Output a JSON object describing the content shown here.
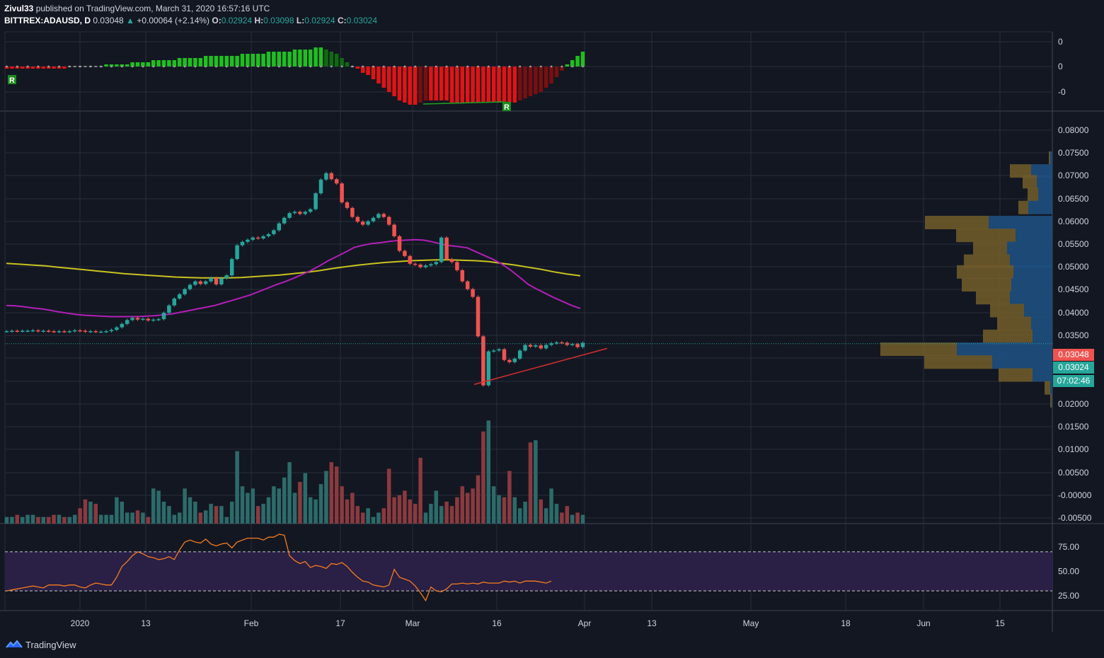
{
  "header": {
    "publisher": "Zivul33",
    "published_text": "published on TradingView.com, March 31, 2020 16:57:16 UTC",
    "symbol": "BITTREX:ADAUSD, D",
    "last": "0.03048",
    "change": "+0.00064 (+2.14%)",
    "o_label": "O:",
    "o": "0.02924",
    "h_label": "H:",
    "h": "0.03098",
    "l_label": "L:",
    "l": "0.02924",
    "c_label": "C:",
    "c": "0.03024"
  },
  "tags": {
    "price": "0.03048",
    "close": "0.03024",
    "countdown": "07:02:46"
  },
  "footer": {
    "brand": "TradingView"
  },
  "colors": {
    "bg": "#131722",
    "grid": "#2a2e39",
    "up": "#26a69a",
    "down": "#ef5350",
    "ma_fast": "#b31fb8",
    "ma_slow": "#c9c31e",
    "rsi": "#f57c1f",
    "rsi_band": "#2a1f45",
    "vp_up": "#1e4f7e",
    "vp_down": "#6e5a2a"
  },
  "chart_data": [
    {
      "type": "candlestick",
      "symbol": "BITTREX:ADAUSD",
      "interval": "D",
      "x_ticks": [
        "2020",
        "13",
        "Feb",
        "17",
        "Mar",
        "16",
        "Apr",
        "13",
        "May",
        "18",
        "Jun",
        "15"
      ],
      "y_ticks": [
        "0.08000",
        "0.07500",
        "0.07000",
        "0.06500",
        "0.06000",
        "0.05500",
        "0.05000",
        "0.04500",
        "0.04000",
        "0.03500",
        "0.03000",
        "0.02500",
        "0.02000",
        "0.01500",
        "0.01000",
        "0.00500",
        "-0.00000",
        "-0.00500"
      ],
      "close": [
        0.0332,
        0.0333,
        0.0332,
        0.0333,
        0.0333,
        0.0334,
        0.0332,
        0.0333,
        0.0332,
        0.0331,
        0.0332,
        0.0331,
        0.0332,
        0.0334,
        0.0333,
        0.0331,
        0.0332,
        0.0331,
        0.0331,
        0.0332,
        0.0335,
        0.0341,
        0.0349,
        0.0358,
        0.0363,
        0.0359,
        0.0361,
        0.0357,
        0.0359,
        0.036,
        0.0375,
        0.0392,
        0.0408,
        0.0418,
        0.043,
        0.044,
        0.0448,
        0.0442,
        0.0448,
        0.0456,
        0.0441,
        0.0455,
        0.0462,
        0.05,
        0.0532,
        0.054,
        0.0545,
        0.055,
        0.0548,
        0.0553,
        0.0558,
        0.0567,
        0.0583,
        0.0596,
        0.0607,
        0.061,
        0.0605,
        0.061,
        0.0616,
        0.0653,
        0.0685,
        0.07,
        0.0686,
        0.0676,
        0.0632,
        0.0619,
        0.0598,
        0.0587,
        0.058,
        0.0588,
        0.0596,
        0.0605,
        0.0598,
        0.058,
        0.0553,
        0.0519,
        0.0507,
        0.0489,
        0.0487,
        0.0481,
        0.0485,
        0.0488,
        0.0493,
        0.055,
        0.05,
        0.0493,
        0.0474,
        0.0448,
        0.043,
        0.0412,
        0.032,
        0.0206,
        0.0285,
        0.0287,
        0.029,
        0.0265,
        0.026,
        0.0268,
        0.0287,
        0.03,
        0.0296,
        0.0299,
        0.0292,
        0.03,
        0.0304,
        0.0306,
        0.0305,
        0.03,
        0.0302,
        0.0295,
        0.0305
      ],
      "volume": [
        3,
        3,
        4,
        3,
        4,
        4,
        3,
        3,
        3,
        4,
        4,
        3,
        3,
        4,
        7,
        11,
        10,
        9,
        4,
        4,
        4,
        12,
        10,
        5,
        5,
        6,
        5,
        3,
        16,
        15,
        10,
        8,
        4,
        5,
        16,
        12,
        10,
        5,
        6,
        9,
        8,
        8,
        3,
        10,
        33,
        17,
        14,
        16,
        8,
        9,
        12,
        17,
        16,
        21,
        28,
        14,
        19,
        23,
        12,
        11,
        18,
        24,
        28,
        26,
        17,
        11,
        14,
        8,
        5,
        7,
        3,
        5,
        7,
        25,
        12,
        13,
        15,
        11,
        9,
        30,
        5,
        9,
        15,
        8,
        10,
        8,
        12,
        17,
        14,
        16,
        22,
        42,
        47,
        17,
        13,
        12,
        24,
        12,
        7,
        10,
        37,
        38,
        11,
        7,
        16,
        9,
        5,
        8,
        4,
        5,
        4
      ],
      "ma_fast": [
        0.0392,
        0.0391,
        0.0389,
        0.0386,
        0.0384,
        0.0381,
        0.0377,
        0.0374,
        0.0371,
        0.0369,
        0.0368,
        0.0367,
        0.0366,
        0.0366,
        0.0366,
        0.0366,
        0.0367,
        0.0368,
        0.037,
        0.0372,
        0.0376,
        0.038,
        0.0384,
        0.0388,
        0.0392,
        0.0398,
        0.0404,
        0.041,
        0.0416,
        0.0424,
        0.0432,
        0.044,
        0.0447,
        0.0455,
        0.0464,
        0.0473,
        0.0484,
        0.0496,
        0.0506,
        0.0516,
        0.0527,
        0.0532,
        0.0536,
        0.0538,
        0.0541,
        0.0543,
        0.0544,
        0.0545,
        0.0544,
        0.054,
        0.0535,
        0.0531,
        0.0529,
        0.0526,
        0.0517,
        0.0508,
        0.0499,
        0.0488,
        0.0474,
        0.0458,
        0.0441,
        0.043,
        0.042,
        0.041,
        0.0401,
        0.0392,
        0.0385
      ],
      "ma_slow": [
        0.049,
        0.0488,
        0.0486,
        0.0484,
        0.0481,
        0.0478,
        0.0475,
        0.0472,
        0.0469,
        0.0466,
        0.0464,
        0.0462,
        0.046,
        0.0458,
        0.0457,
        0.0456,
        0.0456,
        0.0456,
        0.0457,
        0.0459,
        0.0461,
        0.0463,
        0.0466,
        0.0469,
        0.0473,
        0.0478,
        0.0482,
        0.0486,
        0.0489,
        0.0492,
        0.0494,
        0.0496,
        0.0497,
        0.0498,
        0.0498,
        0.0497,
        0.0496,
        0.0494,
        0.049,
        0.0486,
        0.0481,
        0.0476,
        0.047,
        0.0465,
        0.0461
      ],
      "trendline": {
        "from": 0.0208,
        "to": 0.0292
      },
      "volume_profile": {
        "price_levels": [
          0.0735,
          0.0705,
          0.068,
          0.065,
          0.062,
          0.0585,
          0.0555,
          0.0525,
          0.0495,
          0.047,
          0.044,
          0.041,
          0.038,
          0.035,
          0.032,
          0.029,
          0.026,
          0.023,
          0.02,
          0.017
        ],
        "up": [
          3,
          30,
          22,
          20,
          34,
          90,
          52,
          64,
          60,
          55,
          58,
          60,
          40,
          30,
          28,
          135,
          85,
          28,
          3,
          1
        ],
        "down": [
          2,
          30,
          20,
          15,
          14,
          90,
          84,
          48,
          65,
          80,
          70,
          48,
          48,
          48,
          70,
          108,
          96,
          48,
          8,
          2
        ]
      }
    },
    {
      "type": "histogram",
      "name": "momentum oscillator",
      "y_ticks": [
        "0",
        "0",
        "-0"
      ],
      "values": [
        -1,
        -1,
        -1,
        -1,
        -1,
        -1,
        -1,
        -1,
        -1,
        -1,
        -1,
        -1,
        0,
        0,
        0,
        0,
        0,
        0,
        0,
        1,
        1,
        1,
        1,
        1,
        2,
        2,
        2,
        2,
        3,
        3,
        3,
        3,
        3,
        4,
        4,
        4,
        4,
        4,
        5,
        5,
        5,
        5,
        5,
        5,
        5,
        6,
        6,
        6,
        6,
        6,
        7,
        7,
        7,
        7,
        7,
        8,
        8,
        8,
        8,
        9,
        9,
        8,
        7,
        6,
        4,
        2,
        0,
        -1,
        -3,
        -4,
        -6,
        -8,
        -10,
        -12,
        -14,
        -16,
        -17,
        -18,
        -18,
        -17,
        -16,
        -16,
        -16,
        -16,
        -16,
        -17,
        -17,
        -17,
        -17,
        -17,
        -17,
        -17,
        -17,
        -17,
        -17,
        -17,
        -17,
        -17,
        -16,
        -15,
        -14,
        -13,
        -12,
        -10,
        -8,
        -5,
        -2,
        1,
        3,
        5,
        7
      ]
    },
    {
      "type": "line",
      "name": "RSI",
      "y_ticks": [
        "75.00",
        "50.00",
        "25.00"
      ],
      "ylim": [
        15,
        90
      ],
      "values": [
        30,
        31,
        32,
        33,
        34,
        35,
        34,
        33,
        36,
        36,
        36,
        35,
        36,
        36,
        34,
        33,
        36,
        38,
        37,
        36,
        36,
        44,
        55,
        60,
        66,
        70,
        68,
        65,
        64,
        62,
        63,
        65,
        62,
        72,
        80,
        82,
        80,
        79,
        83,
        78,
        76,
        78,
        79,
        74,
        80,
        82,
        84,
        84,
        84,
        82,
        85,
        85,
        88,
        87,
        66,
        61,
        58,
        60,
        54,
        56,
        55,
        53,
        58,
        57,
        59,
        55,
        49,
        44,
        40,
        39,
        36,
        35,
        34,
        36,
        52,
        44,
        42,
        40,
        35,
        28,
        20,
        34,
        30,
        29,
        32,
        37,
        37,
        38,
        37,
        38,
        37,
        39,
        38,
        38,
        38,
        40,
        39,
        40,
        38,
        40,
        40,
        40,
        39,
        38,
        40
      ]
    }
  ]
}
